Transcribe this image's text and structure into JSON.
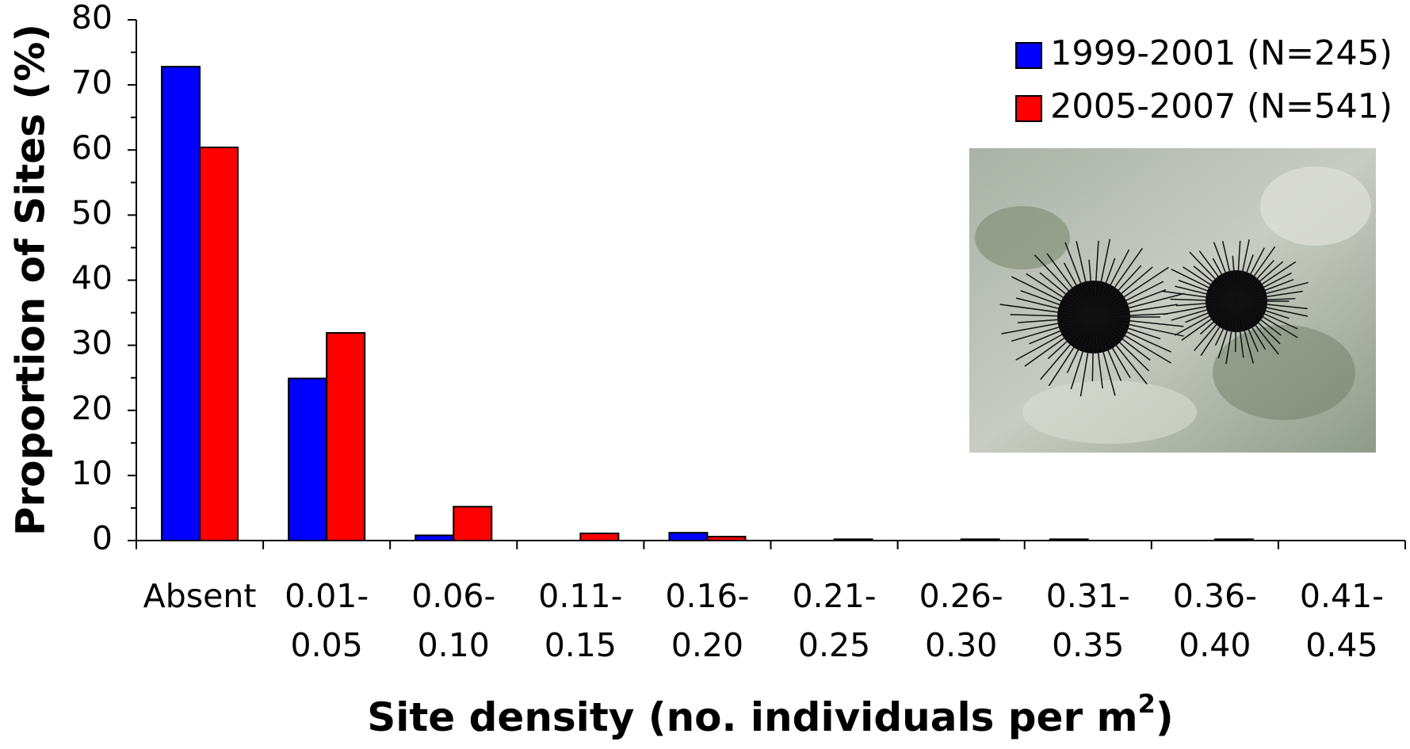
{
  "chart_data": {
    "type": "bar",
    "y_label": "Proportion of Sites (%)",
    "x_label": {
      "text": "Site density (no. individuals per m",
      "superscript": "2",
      "suffix": ")"
    },
    "categories": [
      [
        "Absent"
      ],
      [
        "0.01-",
        "0.05"
      ],
      [
        "0.06-",
        "0.10"
      ],
      [
        "0.11-",
        "0.15"
      ],
      [
        "0.16-",
        "0.20"
      ],
      [
        "0.21-",
        "0.25"
      ],
      [
        "0.26-",
        "0.30"
      ],
      [
        "0.31-",
        "0.35"
      ],
      [
        "0.36-",
        "0.40"
      ],
      [
        "0.41-",
        "0.45"
      ]
    ],
    "series": [
      {
        "name": "1999-2001 (N=245)",
        "color": "#0000ff",
        "values": [
          72.8,
          24.9,
          0.8,
          0,
          1.2,
          0,
          0,
          0.2,
          0,
          0
        ]
      },
      {
        "name": "2005-2007 (N=541)",
        "color": "#ff0000",
        "values": [
          60.4,
          31.9,
          5.2,
          1.1,
          0.6,
          0.2,
          0.2,
          0,
          0.2,
          0
        ]
      }
    ],
    "ylim": [
      0,
      80
    ],
    "yticks": [
      0,
      10,
      20,
      30,
      40,
      50,
      60,
      70,
      80
    ],
    "legend": "upper right",
    "grid": false
  }
}
